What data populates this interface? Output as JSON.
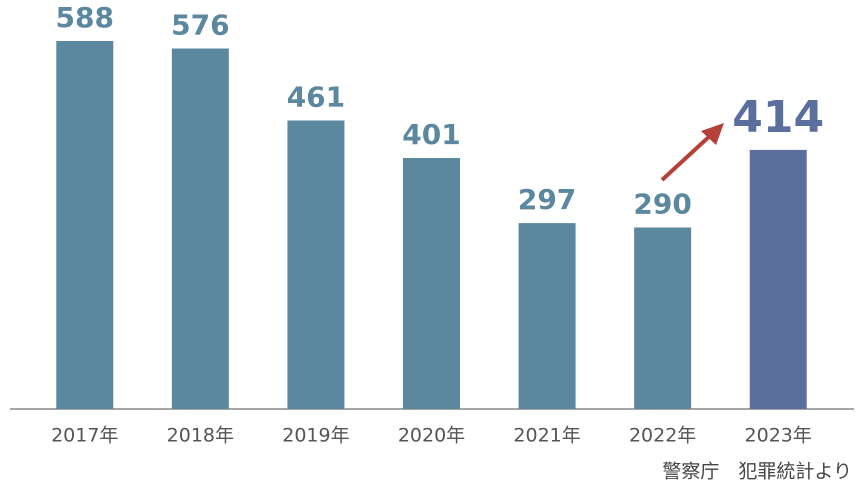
{
  "chart_data": {
    "type": "bar",
    "categories": [
      "2017年",
      "2018年",
      "2019年",
      "2020年",
      "2021年",
      "2022年",
      "2023年"
    ],
    "values": [
      588,
      576,
      461,
      401,
      297,
      290,
      414
    ],
    "colors": [
      "#5b889f",
      "#5b889f",
      "#5b889f",
      "#5b889f",
      "#5b889f",
      "#5b889f",
      "#5a6f9e"
    ],
    "source": "警察庁　犯罪統計より"
  }
}
